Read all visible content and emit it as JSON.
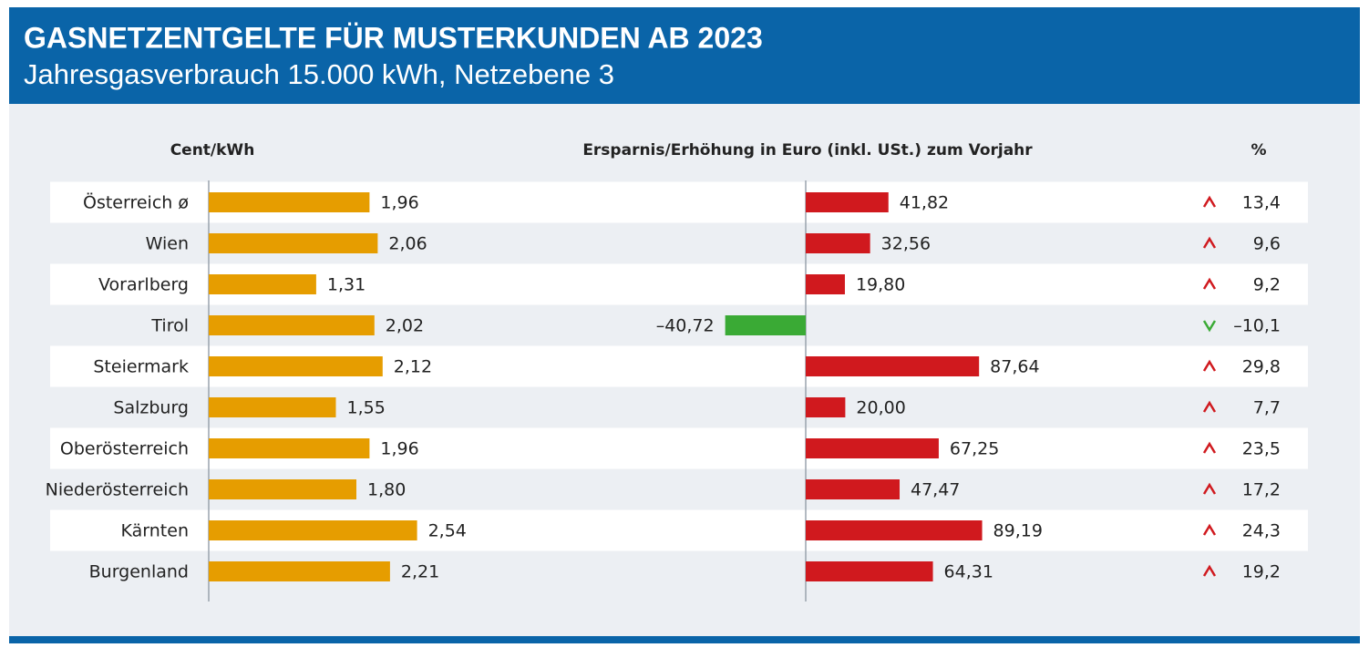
{
  "chart_data": {
    "type": "bar",
    "title": "GASNETZENTGELTE FÜR MUSTERKUNDEN AB 2023",
    "subtitle": "Jahresgasverbrauch 15.000 kWh, Netzebene 3",
    "categories": [
      "Österreich ø",
      "Wien",
      "Vorarlberg",
      "Tirol",
      "Steiermark",
      "Salzburg",
      "Oberösterreich",
      "Niederösterreich",
      "Kärnten",
      "Burgenland"
    ],
    "series": [
      {
        "name": "Cent/kWh",
        "color": "#e69d00",
        "xlim": [
          0,
          4
        ],
        "values": [
          1.96,
          2.06,
          1.31,
          2.02,
          2.12,
          1.55,
          1.96,
          1.8,
          2.54,
          2.21
        ],
        "value_labels": [
          "1,96",
          "2,06",
          "1,31",
          "2,02",
          "2,12",
          "1,55",
          "1,96",
          "1,80",
          "2,54",
          "2,21"
        ]
      },
      {
        "name": "Ersparnis/Erhöhung in Euro (inkl. USt.) zum Vorjahr",
        "color": "#d0191e",
        "negative_color": "#3aaa35",
        "xlim": [
          -100,
          100
        ],
        "values": [
          41.82,
          32.56,
          19.8,
          -40.72,
          87.64,
          20.0,
          67.25,
          47.47,
          89.19,
          64.31
        ],
        "value_labels": [
          "41,82",
          "32,56",
          "19,80",
          "–40,72",
          "87,64",
          "20,00",
          "67,25",
          "47,47",
          "89,19",
          "64,31"
        ]
      },
      {
        "name": "%",
        "color": "#d0191e",
        "negative_color": "#3aaa35",
        "values": [
          13.4,
          9.6,
          9.2,
          -10.1,
          29.8,
          7.7,
          23.5,
          17.2,
          24.3,
          19.2
        ],
        "value_labels": [
          "13,4",
          "9,6",
          "9,2",
          "–10,1",
          "29,8",
          "7,7",
          "23,5",
          "17,2",
          "24,3",
          "19,2"
        ]
      }
    ]
  }
}
